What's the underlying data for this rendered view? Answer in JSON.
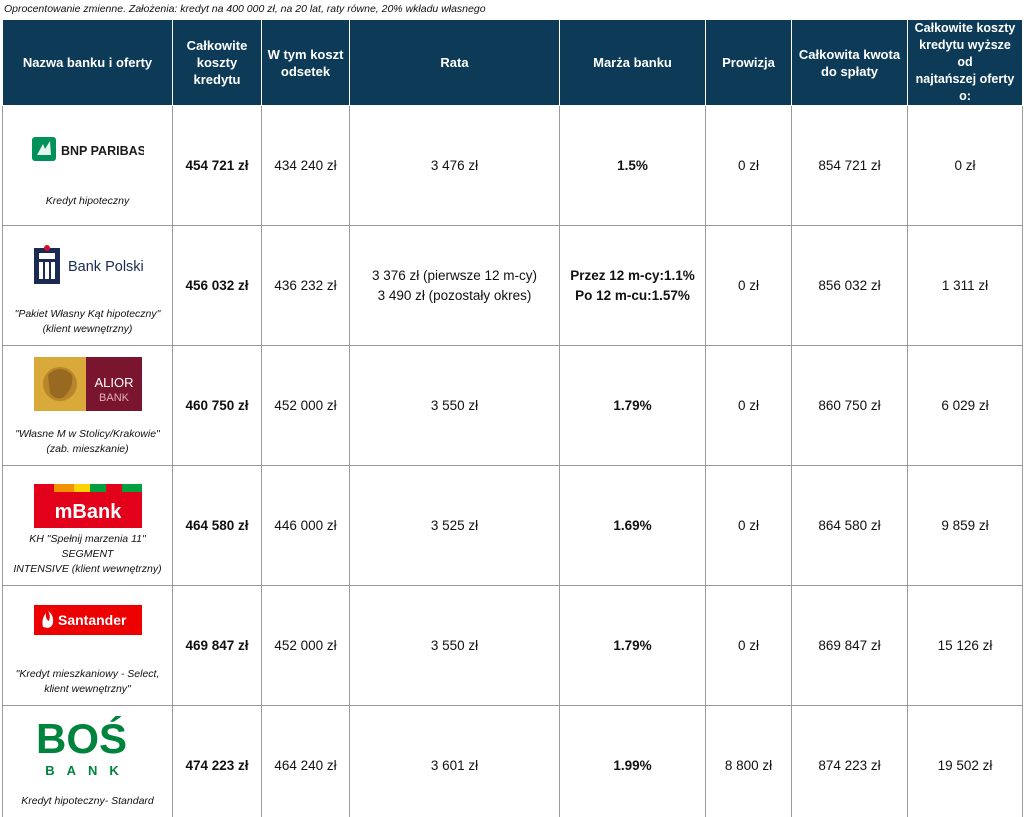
{
  "caption": "Oprocentowanie zmienne. Założenia: kredyt na 400 000 zł, na 20 lat, raty równe, 20% wkładu własnego",
  "headers": {
    "bank": "Nazwa banku i oferty",
    "total_cost": [
      "Całkowite",
      "koszty",
      "kredytu"
    ],
    "interest": [
      "W tym koszt",
      "odsetek"
    ],
    "rate": "Rata",
    "margin": "Marża banku",
    "fee": "Prowizja",
    "total_repay": [
      "Całkowita kwota",
      "do spłaty"
    ],
    "difference": [
      "Całkowite koszty",
      "kredytu wyższe od",
      "najtańszej oferty o:"
    ]
  },
  "colors": {
    "header_bg": "#0d3b57",
    "difference_red": "#d03030",
    "bnp_green": "#00915a",
    "pko_navy": "#1b2a52",
    "alior_burgundy": "#7a1530",
    "alior_gold": "#d9a93a",
    "mbank_red": "#e2001a",
    "mbank_orange": "#f39200",
    "mbank_green": "#00a03e",
    "santander_red": "#ec0000",
    "bos_green": "#00843d"
  },
  "rows": [
    {
      "logo": "bnp-paribas-logo",
      "logo_text": "BNP PARIBAS",
      "offer": [
        "Kredyt hipoteczny"
      ],
      "total_cost": "454 721 zł",
      "interest": "434 240 zł",
      "rate": [
        "3 476 zł"
      ],
      "margin": [
        "1.5%"
      ],
      "fee": "0 zł",
      "total_repay": "854 721 zł",
      "difference": "0 zł"
    },
    {
      "logo": "pko-bank-polski-logo",
      "logo_text": "Bank Polski",
      "offer": [
        "\"Pakiet Własny Kąt hipoteczny\"",
        "(klient wewnętrzny)"
      ],
      "total_cost": "456 032 zł",
      "interest": "436 232 zł",
      "rate": [
        "3 376 zł (pierwsze 12 m-cy)",
        "3 490 zł (pozostały okres)"
      ],
      "margin": [
        "Przez 12 m-cy:1.1%",
        "Po 12 m-cu:1.57%"
      ],
      "fee": "0 zł",
      "total_repay": "856 032 zł",
      "difference": "1 311 zł"
    },
    {
      "logo": "alior-bank-logo",
      "logo_text": [
        "ALIOR",
        "BANK"
      ],
      "offer": [
        "\"Własne M w Stolicy/Krakowie\"",
        "(zab. mieszkanie)"
      ],
      "total_cost": "460 750 zł",
      "interest": "452 000 zł",
      "rate": [
        "3 550 zł"
      ],
      "margin": [
        "1.79%"
      ],
      "fee": "0 zł",
      "total_repay": "860 750 zł",
      "difference": "6 029 zł"
    },
    {
      "logo": "mbank-logo",
      "logo_text": "mBank",
      "offer": [
        "KH \"Spełnij marzenia 11\" SEGMENT",
        "INTENSIVE (klient wewnętrzny)"
      ],
      "total_cost": "464 580 zł",
      "interest": "446 000 zł",
      "rate": [
        "3 525 zł"
      ],
      "margin": [
        "1.69%"
      ],
      "fee": "0 zł",
      "total_repay": "864 580 zł",
      "difference": "9 859 zł"
    },
    {
      "logo": "santander-logo",
      "logo_text": "Santander",
      "offer": [
        "\"Kredyt mieszkaniowy - Select,",
        "klient wewnętrzny\""
      ],
      "total_cost": "469 847 zł",
      "interest": "452 000 zł",
      "rate": [
        "3 550 zł"
      ],
      "margin": [
        "1.79%"
      ],
      "fee": "0 zł",
      "total_repay": "869 847 zł",
      "difference": "15 126 zł"
    },
    {
      "logo": "bos-bank-logo",
      "logo_text": [
        "BOŚ",
        "BANK"
      ],
      "offer": [
        "Kredyt hipoteczny- Standard"
      ],
      "total_cost": "474 223 zł",
      "interest": "464 240 zł",
      "rate": [
        "3 601 zł"
      ],
      "margin": [
        "1.99%"
      ],
      "fee": "8 800 zł",
      "total_repay": "874 223 zł",
      "difference": "19 502 zł"
    }
  ]
}
